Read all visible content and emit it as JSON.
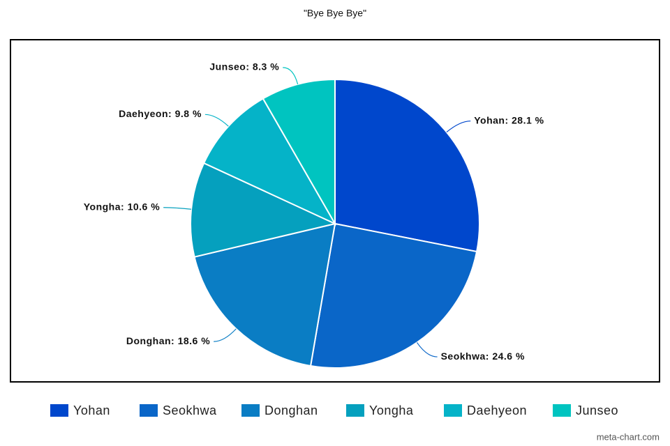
{
  "chart_data": {
    "type": "pie",
    "title": "\"Bye Bye Bye\"",
    "categories": [
      "Yohan",
      "Seokhwa",
      "Donghan",
      "Yongha",
      "Daehyeon",
      "Junseo"
    ],
    "values": [
      28.1,
      24.6,
      18.6,
      10.6,
      9.8,
      8.3
    ],
    "value_labels": [
      "Yohan: 28.1 %",
      "Seokhwa: 24.6 %",
      "Donghan: 18.6 %",
      "Yongha: 10.6 %",
      "Daehyeon: 9.8 %",
      "Junseo: 8.3 %"
    ],
    "colors": [
      "#0047cc",
      "#0a66c8",
      "#0a7dc4",
      "#05a0be",
      "#05b3c8",
      "#00c4c0"
    ],
    "legend": "bottom",
    "watermark": "meta-chart.com"
  }
}
